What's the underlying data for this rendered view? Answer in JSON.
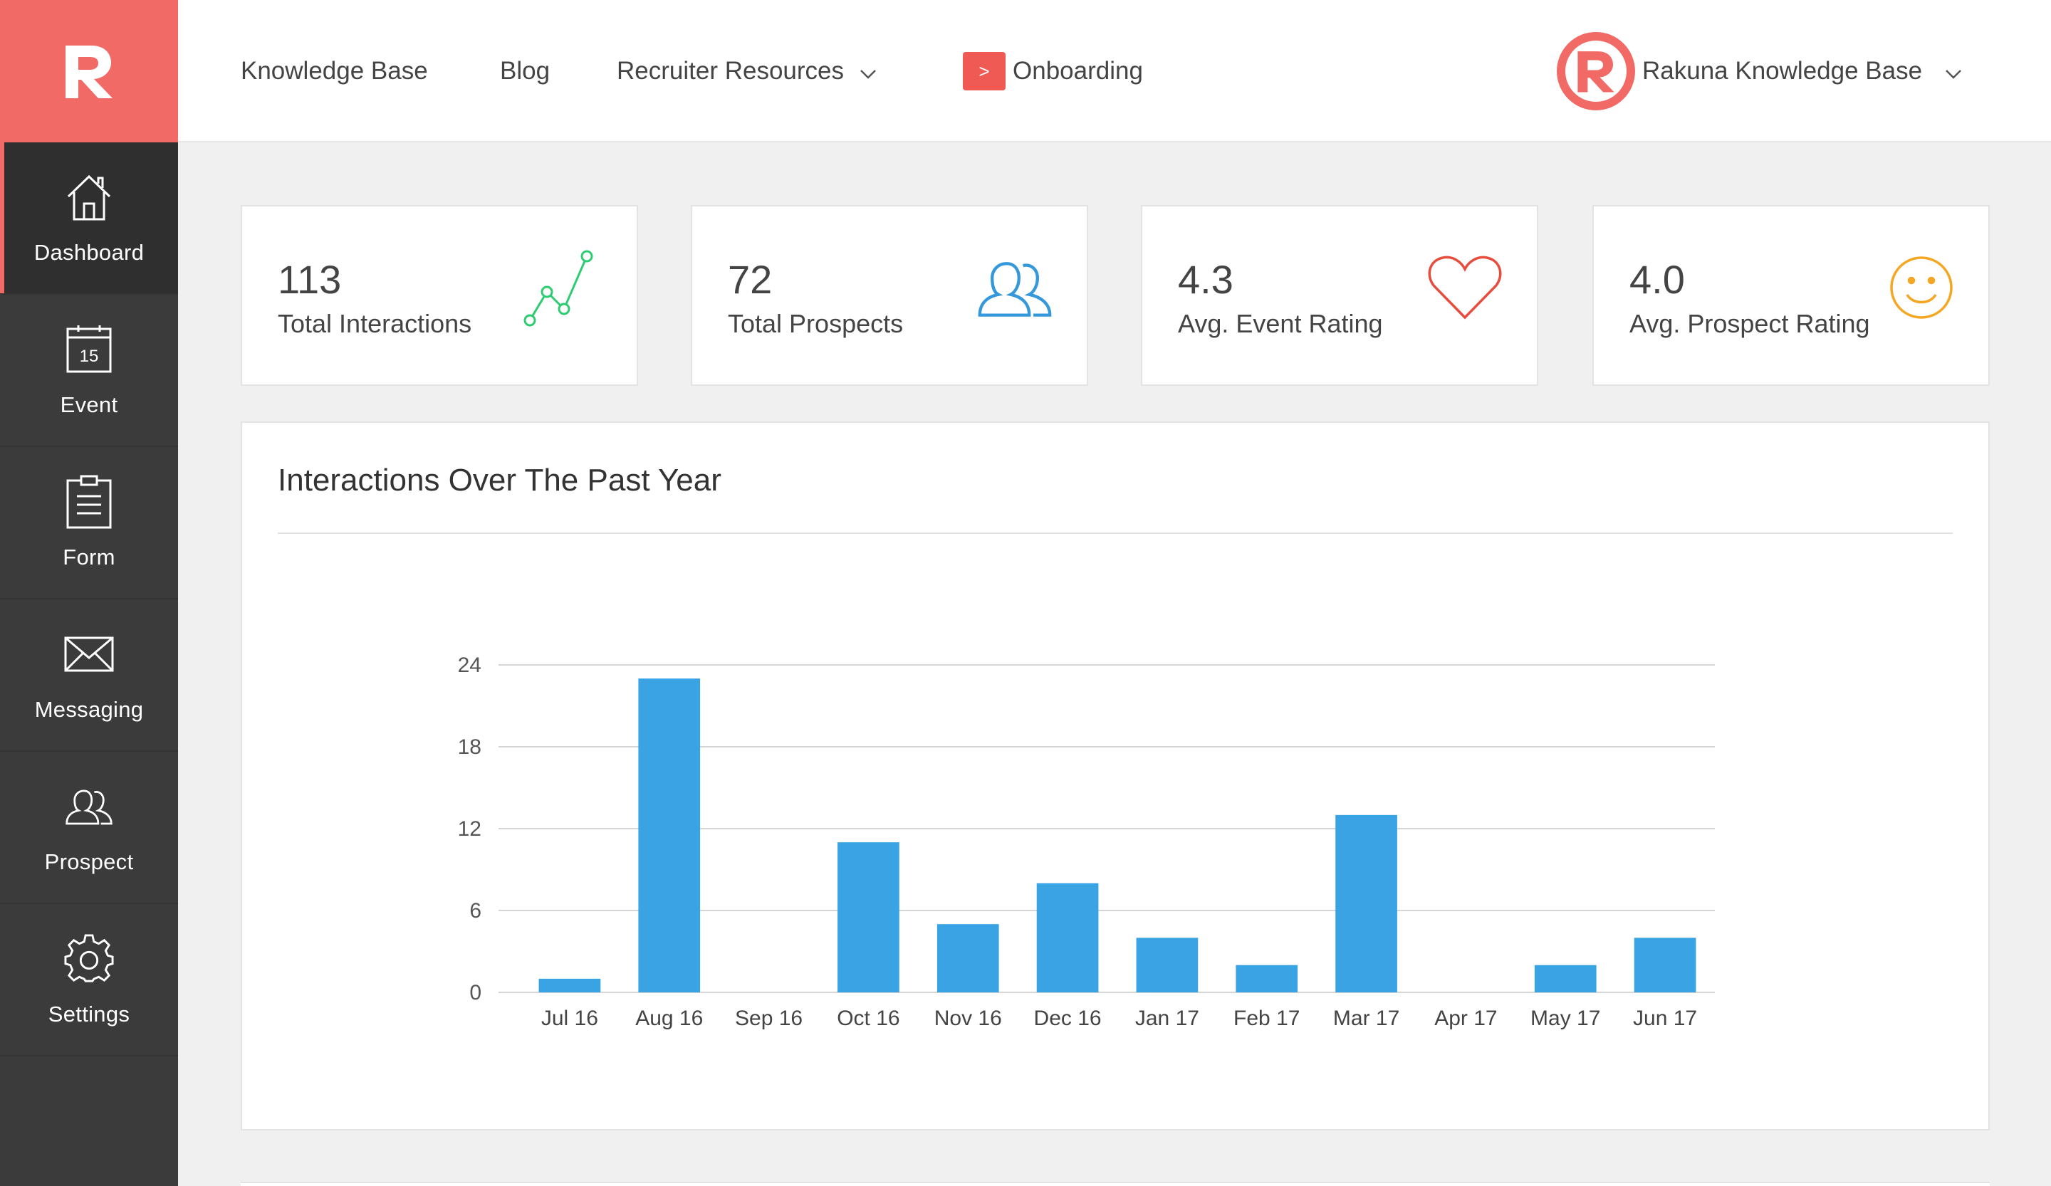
{
  "sidebar": {
    "items": [
      {
        "label": "Dashboard",
        "icon": "home-icon"
      },
      {
        "label": "Event",
        "icon": "calendar-icon",
        "badge": "15"
      },
      {
        "label": "Form",
        "icon": "clipboard-icon"
      },
      {
        "label": "Messaging",
        "icon": "envelope-icon"
      },
      {
        "label": "Prospect",
        "icon": "users-icon"
      },
      {
        "label": "Settings",
        "icon": "gear-icon"
      }
    ]
  },
  "topbar": {
    "knowledge_base": "Knowledge Base",
    "blog": "Blog",
    "recruiter_resources": "Recruiter Resources",
    "onboarding_badge": ">",
    "onboarding": "Onboarding",
    "account": "Rakuna Knowledge Base"
  },
  "stats": [
    {
      "value": "113",
      "label": "Total Interactions",
      "icon": "trend-line-icon",
      "color": "#2ecc71"
    },
    {
      "value": "72",
      "label": "Total Prospects",
      "icon": "users-icon",
      "color": "#3498db"
    },
    {
      "value": "4.3",
      "label": "Avg. Event Rating",
      "icon": "heart-icon",
      "color": "#e74c3c"
    },
    {
      "value": "4.0",
      "label": "Avg. Prospect Rating",
      "icon": "smiley-icon",
      "color": "#f5a623"
    }
  ],
  "colors": {
    "brand": "#f26a66",
    "sidebar": "#3b3b3b",
    "bar": "#3aa3e3"
  },
  "chart_data": {
    "type": "bar",
    "title": "Interactions Over The Past Year",
    "categories": [
      "Jul 16",
      "Aug 16",
      "Sep 16",
      "Oct 16",
      "Nov 16",
      "Dec 16",
      "Jan 17",
      "Feb 17",
      "Mar 17",
      "Apr 17",
      "May 17",
      "Jun 17"
    ],
    "values": [
      1,
      23,
      0,
      11,
      5,
      8,
      4,
      2,
      13,
      0,
      2,
      4
    ],
    "yticks": [
      0,
      6,
      12,
      18,
      24
    ],
    "ylim": [
      0,
      24
    ],
    "grid": true
  }
}
